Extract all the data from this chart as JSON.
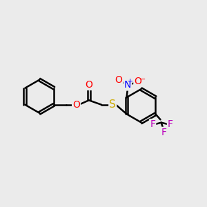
{
  "bg_color": "#ebebeb",
  "bond_color": "#000000",
  "bond_width": 1.8,
  "dbo": 0.055,
  "fig_size": [
    3.0,
    3.0
  ],
  "dpi": 100,
  "atom_colors": {
    "O": "#ff0000",
    "S": "#ccaa00",
    "N": "#0000ff",
    "F": "#bb00bb",
    "C": "#000000"
  },
  "fs": 10,
  "fs_sub": 7,
  "fs_pm": 8
}
